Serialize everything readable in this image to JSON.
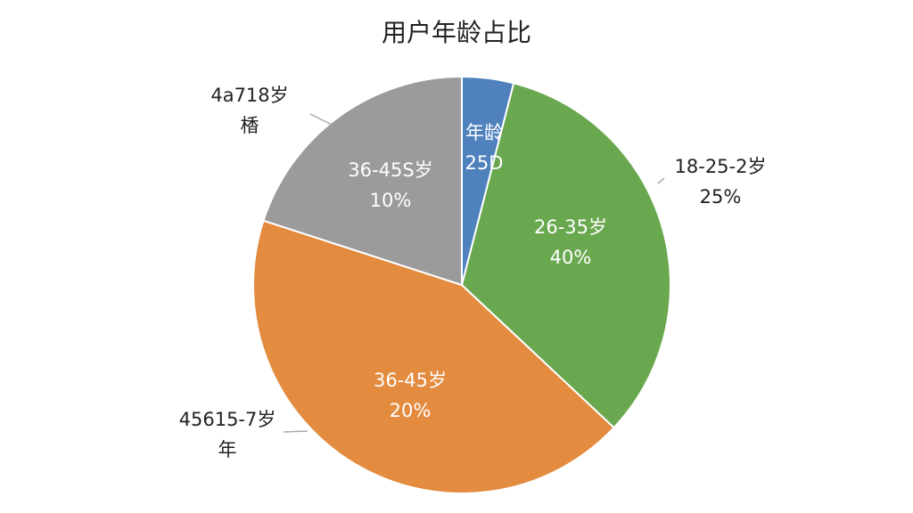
{
  "chart_data": {
    "type": "pie",
    "title": "用户年龄占比",
    "values": [
      4,
      33,
      43,
      20
    ],
    "colors": [
      "#4f81bd",
      "#6aa84f",
      "#e38b3f",
      "#9b9b9b"
    ],
    "annotations": [
      [
        "年龄",
        "25D"
      ],
      [
        "18-25-2岁",
        "25%"
      ],
      [
        "26-35岁",
        "40%"
      ],
      [
        "36-45岁",
        "20%"
      ],
      [
        "45615-7岁",
        "年"
      ],
      [
        "36-45S岁",
        "10%"
      ],
      [
        "4a718岁",
        "楿"
      ]
    ]
  }
}
